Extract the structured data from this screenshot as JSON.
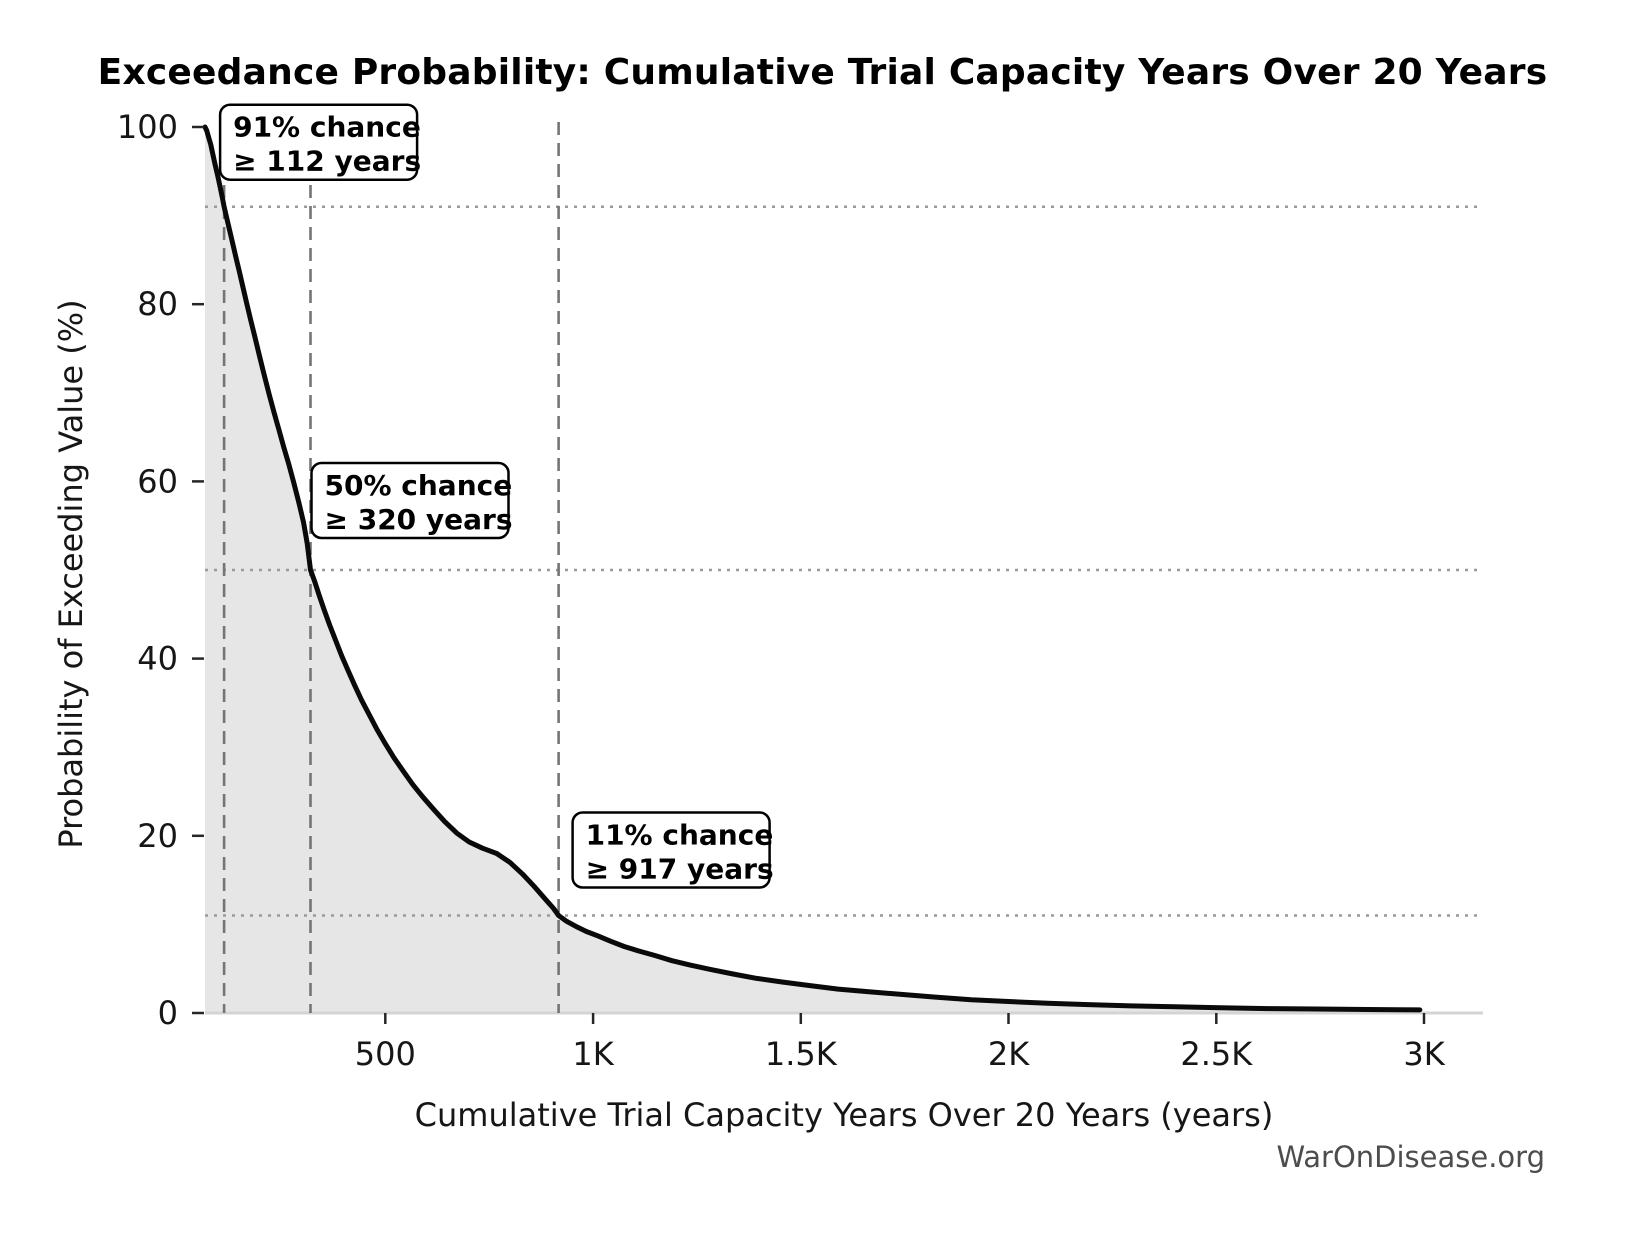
{
  "title": "Exceedance Probability: Cumulative Trial Capacity Years Over 20 Years",
  "axes": {
    "x_label": "Cumulative Trial Capacity Years Over 20 Years (years)",
    "y_label": "Probability of Exceeding Value (%)"
  },
  "watermark": "WarOnDisease.org",
  "annotations": [
    {
      "line1": "91% chance",
      "line2": "≥ 112 years",
      "x_years": 112,
      "y_percent": 91
    },
    {
      "line1": "50% chance",
      "line2": "≥ 320 years",
      "x_years": 320,
      "y_percent": 50
    },
    {
      "line1": "11% chance",
      "line2": "≥ 917 years",
      "x_years": 917,
      "y_percent": 11
    }
  ],
  "colors": {
    "curve": "#0a0a0a",
    "area_fill": "#e6e6e6",
    "dashed_reference_line": "#757575",
    "dotted_gridline": "#9a9a9a",
    "baseline_spine": "#d4d4d4",
    "tick": "#262626",
    "tick_label": "#161616",
    "annotation_border": "#000000",
    "annotation_bg": "#ffffff",
    "watermark": "#4d4d4d"
  },
  "chart_data": {
    "type": "area",
    "title": "Exceedance Probability: Cumulative Trial Capacity Years Over 20 Years",
    "xlabel": "Cumulative Trial Capacity Years Over 20 Years (years)",
    "ylabel": "Probability of Exceeding Value (%)",
    "xlim": [
      66,
      3142
    ],
    "ylim": [
      0,
      100
    ],
    "grid": "reference-lines-only",
    "x_ticks": [
      {
        "value": 500,
        "label": "500"
      },
      {
        "value": 1000,
        "label": "1K"
      },
      {
        "value": 1500,
        "label": "1.5K"
      },
      {
        "value": 2000,
        "label": "2K"
      },
      {
        "value": 2500,
        "label": "2.5K"
      },
      {
        "value": 3000,
        "label": "3K"
      }
    ],
    "y_ticks": [
      {
        "value": 0,
        "label": "0"
      },
      {
        "value": 20,
        "label": "20"
      },
      {
        "value": 40,
        "label": "40"
      },
      {
        "value": 60,
        "label": "60"
      },
      {
        "value": 80,
        "label": "80"
      },
      {
        "value": 100,
        "label": "100"
      }
    ],
    "reference_vlines_years": [
      112,
      320,
      917
    ],
    "reference_hlines_percent": [
      91,
      50,
      11
    ],
    "series": [
      {
        "name": "exceedance-probability",
        "points": [
          [
            66,
            100
          ],
          [
            70,
            99.6
          ],
          [
            75,
            98.8
          ],
          [
            80,
            98
          ],
          [
            85,
            96.9
          ],
          [
            90,
            95.8
          ],
          [
            96,
            94.6
          ],
          [
            102,
            93.3
          ],
          [
            108,
            92
          ],
          [
            112,
            91
          ],
          [
            118,
            89.8
          ],
          [
            125,
            88.4
          ],
          [
            132,
            87
          ],
          [
            140,
            85.4
          ],
          [
            148,
            83.8
          ],
          [
            157,
            82
          ],
          [
            166,
            80.2
          ],
          [
            176,
            78.2
          ],
          [
            186,
            76.3
          ],
          [
            197,
            74.2
          ],
          [
            208,
            72.1
          ],
          [
            220,
            69.9
          ],
          [
            232,
            67.8
          ],
          [
            244,
            65.8
          ],
          [
            256,
            63.8
          ],
          [
            268,
            61.9
          ],
          [
            280,
            59.8
          ],
          [
            292,
            57.6
          ],
          [
            303,
            55.4
          ],
          [
            312,
            53
          ],
          [
            320,
            50
          ],
          [
            330,
            48.7
          ],
          [
            341,
            47.1
          ],
          [
            353,
            45.5
          ],
          [
            366,
            43.8
          ],
          [
            380,
            42.1
          ],
          [
            395,
            40.3
          ],
          [
            410,
            38.7
          ],
          [
            426,
            37
          ],
          [
            443,
            35.3
          ],
          [
            461,
            33.7
          ],
          [
            480,
            32
          ],
          [
            500,
            30.4
          ],
          [
            521,
            28.8
          ],
          [
            543,
            27.3
          ],
          [
            566,
            25.8
          ],
          [
            590,
            24.4
          ],
          [
            616,
            23
          ],
          [
            643,
            21.6
          ],
          [
            672,
            20.3
          ],
          [
            702,
            19.3
          ],
          [
            734,
            18.6
          ],
          [
            768,
            18
          ],
          [
            800,
            17
          ],
          [
            830,
            15.7
          ],
          [
            858,
            14.3
          ],
          [
            884,
            12.9
          ],
          [
            905,
            11.8
          ],
          [
            917,
            11
          ],
          [
            935,
            10.4
          ],
          [
            958,
            9.8
          ],
          [
            984,
            9.2
          ],
          [
            1012,
            8.7
          ],
          [
            1042,
            8.1
          ],
          [
            1075,
            7.5
          ],
          [
            1110,
            7
          ],
          [
            1148,
            6.5
          ],
          [
            1190,
            5.9
          ],
          [
            1235,
            5.4
          ],
          [
            1284,
            4.9
          ],
          [
            1337,
            4.4
          ],
          [
            1394,
            3.9
          ],
          [
            1455,
            3.5
          ],
          [
            1520,
            3.1
          ],
          [
            1590,
            2.7
          ],
          [
            1664,
            2.4
          ],
          [
            1742,
            2.1
          ],
          [
            1824,
            1.8
          ],
          [
            1910,
            1.5
          ],
          [
            2000,
            1.3
          ],
          [
            2094,
            1.1
          ],
          [
            2192,
            0.95
          ],
          [
            2294,
            0.8
          ],
          [
            2400,
            0.7
          ],
          [
            2510,
            0.6
          ],
          [
            2624,
            0.5
          ],
          [
            2742,
            0.45
          ],
          [
            2864,
            0.4
          ],
          [
            2990,
            0.35
          ]
        ]
      }
    ]
  }
}
